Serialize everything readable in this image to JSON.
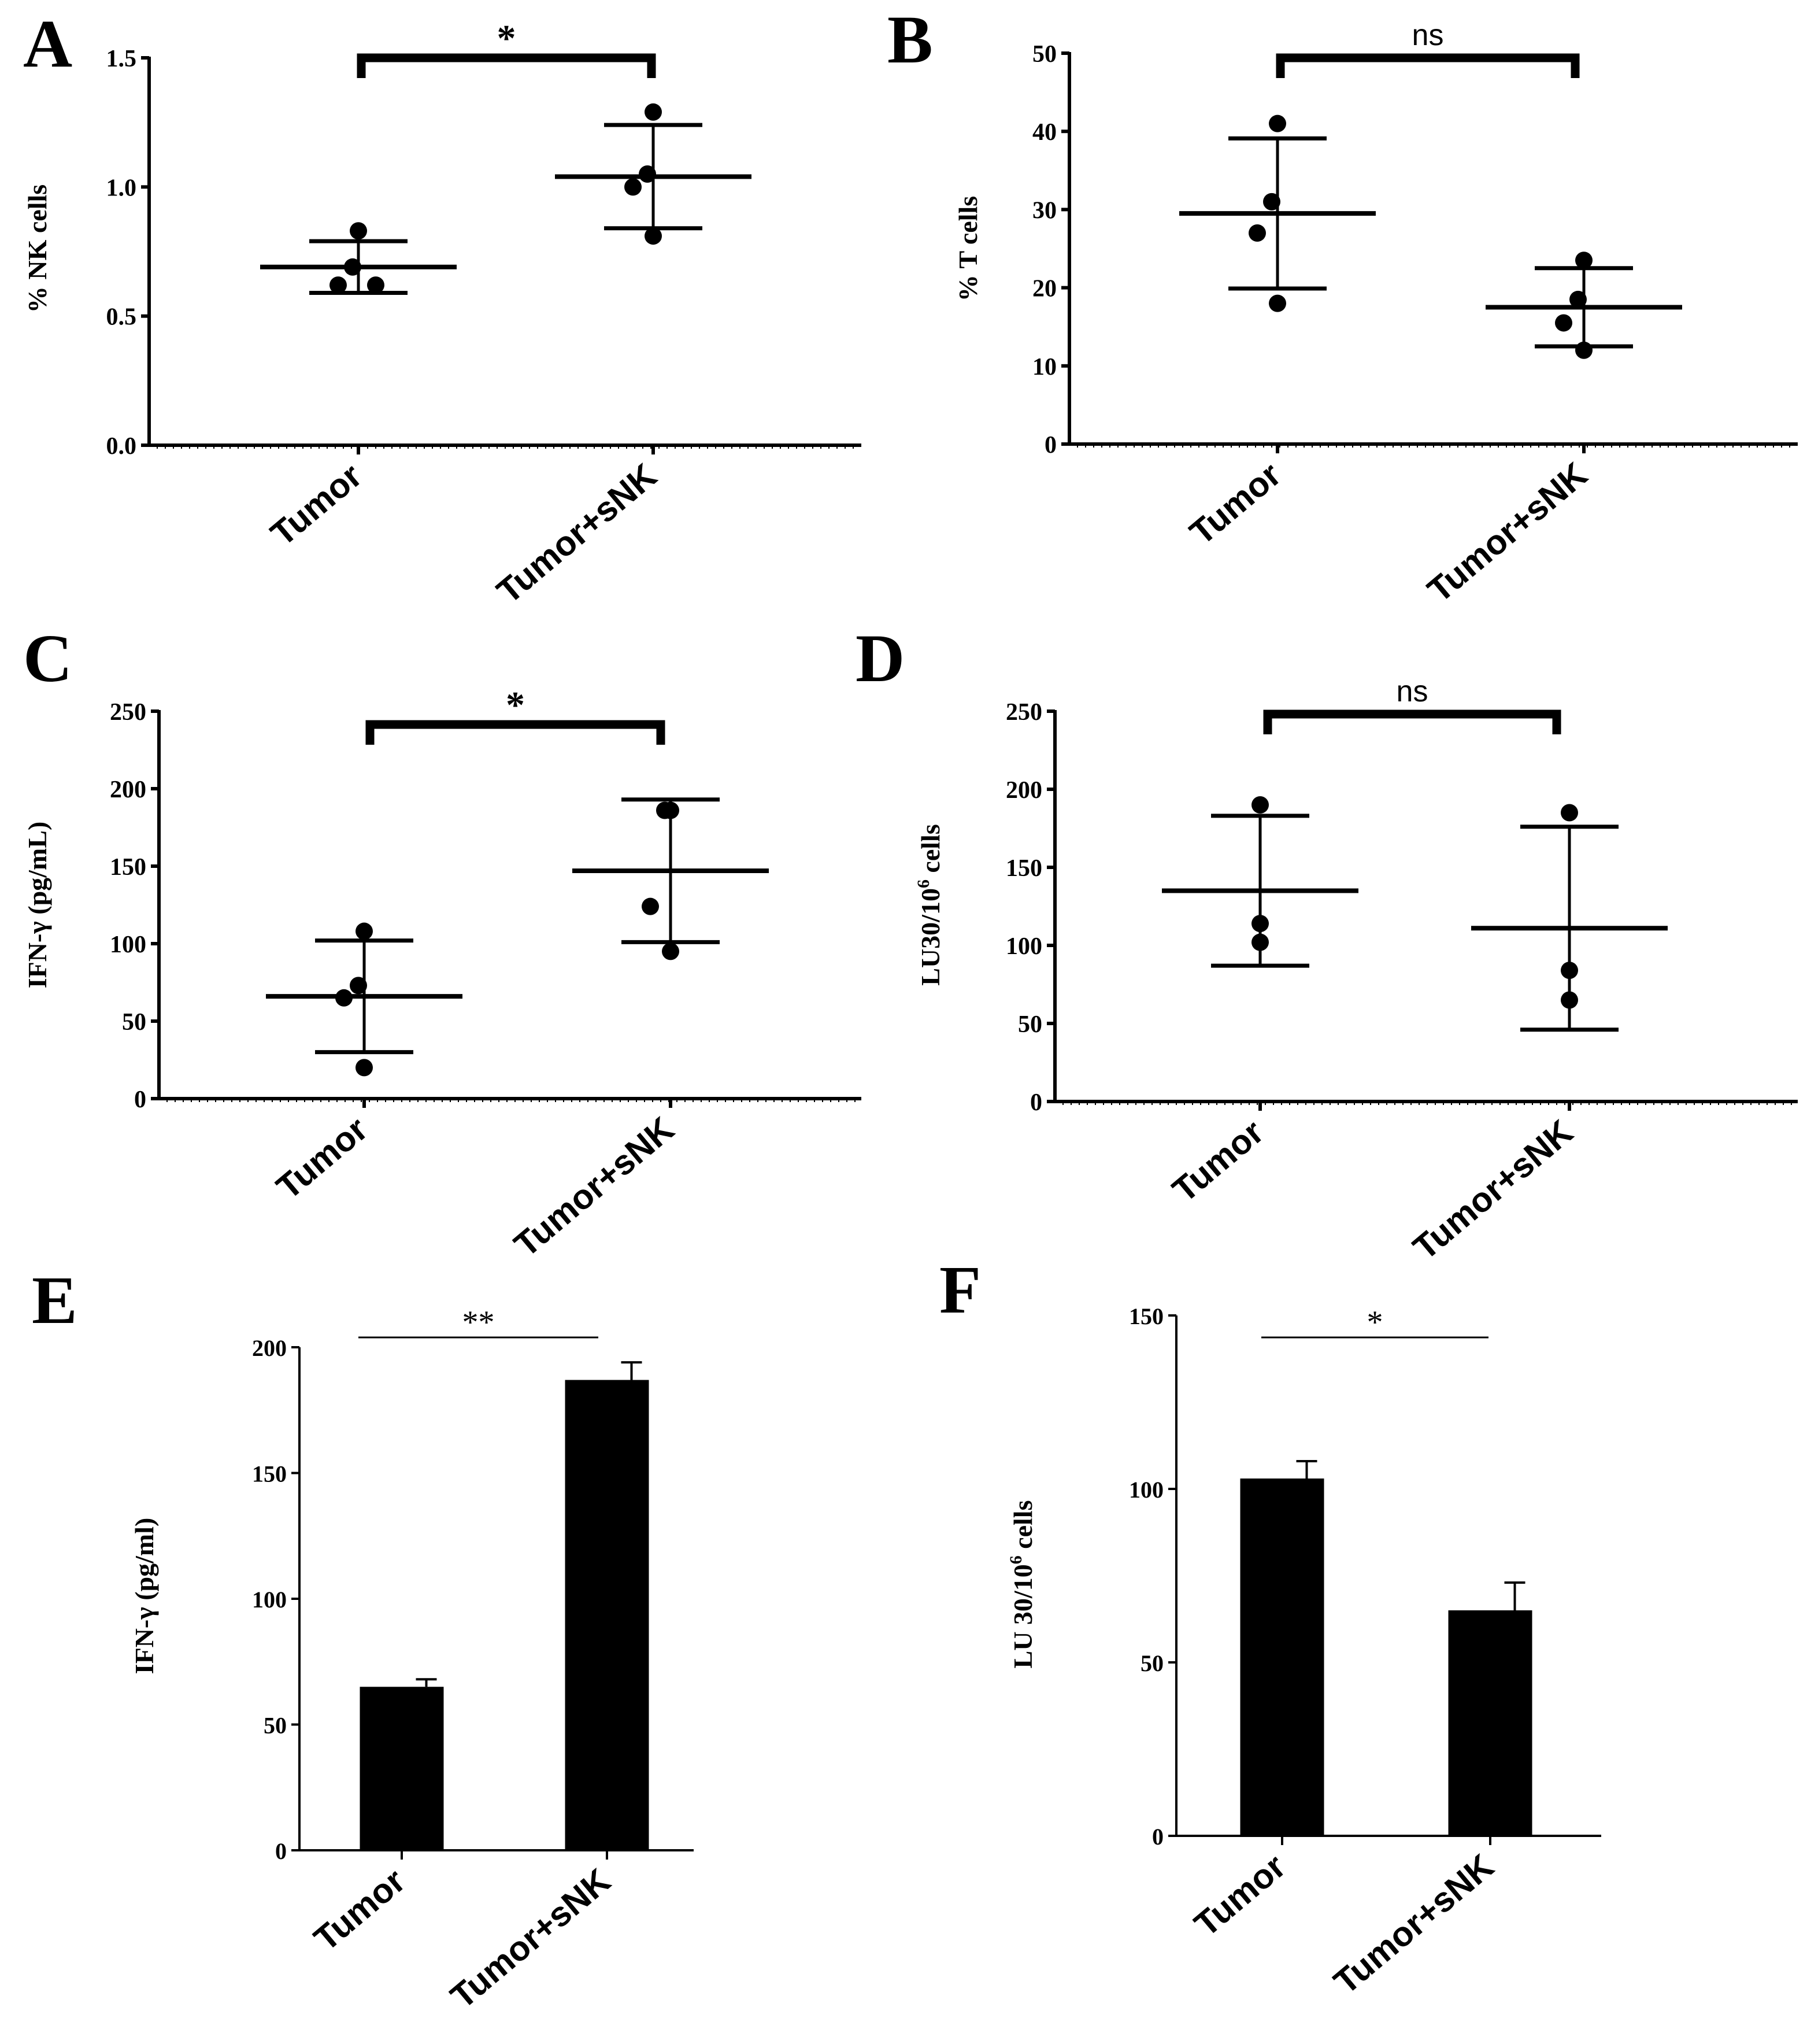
{
  "figure": {
    "background": "#ffffff",
    "ink": "#000000"
  },
  "chart_data": [
    {
      "panel": "A",
      "type": "scatter",
      "ylabel": "% NK cells",
      "ylim": [
        0,
        1.5
      ],
      "yticks": [
        0.0,
        0.5,
        1.0,
        1.5
      ],
      "ytick_labels": [
        "0.0",
        "0.5",
        "1.0",
        "1.5"
      ],
      "categories": [
        "Tumor",
        "Tumor+sNK"
      ],
      "points": [
        [
          0.83,
          0.69,
          0.62,
          0.62
        ],
        [
          1.29,
          1.05,
          1.0,
          0.81
        ]
      ],
      "means": [
        0.69,
        1.04
      ],
      "sd": [
        0.1,
        0.2
      ],
      "significance": "*"
    },
    {
      "panel": "B",
      "type": "scatter",
      "ylabel": "% T cells",
      "ylim": [
        0,
        50
      ],
      "yticks": [
        0,
        10,
        20,
        30,
        40,
        50
      ],
      "ytick_labels": [
        "0",
        "10",
        "20",
        "30",
        "40",
        "50"
      ],
      "categories": [
        "Tumor",
        "Tumor+sNK"
      ],
      "points": [
        [
          41,
          31,
          27,
          18
        ],
        [
          23.5,
          18.5,
          15.5,
          12
        ]
      ],
      "means": [
        29.5,
        17.5
      ],
      "sd": [
        9.6,
        5.0
      ],
      "significance": "ns"
    },
    {
      "panel": "C",
      "type": "scatter",
      "ylabel": "IFN-γ (pg/mL)",
      "ylim": [
        0,
        250
      ],
      "yticks": [
        0,
        50,
        100,
        150,
        200,
        250
      ],
      "ytick_labels": [
        "0",
        "50",
        "100",
        "150",
        "200",
        "250"
      ],
      "categories": [
        "Tumor",
        "Tumor+sNK"
      ],
      "points": [
        [
          108,
          73,
          65,
          20
        ],
        [
          186,
          186,
          124,
          95
        ]
      ],
      "means": [
        66,
        147
      ],
      "sd": [
        36,
        46
      ],
      "significance": "*"
    },
    {
      "panel": "D",
      "type": "scatter",
      "ylabel_main": "LU30/10",
      "ylabel_sup": "6",
      "ylabel_tail": " cells",
      "ylim": [
        0,
        250
      ],
      "yticks": [
        0,
        50,
        100,
        150,
        200,
        250
      ],
      "ytick_labels": [
        "0",
        "50",
        "100",
        "150",
        "200",
        "250"
      ],
      "categories": [
        "Tumor",
        "Tumor+sNK"
      ],
      "points": [
        [
          190,
          114,
          102
        ],
        [
          185,
          84,
          65
        ]
      ],
      "means": [
        135,
        111
      ],
      "sd": [
        48,
        65
      ],
      "significance": "ns"
    },
    {
      "panel": "E",
      "type": "bar",
      "ylabel": "IFN-γ (pg/ml)",
      "ylim": [
        0,
        200
      ],
      "yticks": [
        0,
        50,
        100,
        150,
        200
      ],
      "ytick_labels": [
        "0",
        "50",
        "100",
        "150",
        "200"
      ],
      "categories": [
        "Tumor",
        "Tumor+sNK"
      ],
      "values": [
        65,
        187
      ],
      "errors": [
        3,
        7
      ],
      "significance": "**"
    },
    {
      "panel": "F",
      "type": "bar",
      "ylabel_main": "LU 30/10",
      "ylabel_sup": "6",
      "ylabel_tail": " cells",
      "ylim": [
        0,
        150
      ],
      "yticks": [
        0,
        50,
        100,
        150
      ],
      "ytick_labels": [
        "0",
        "50",
        "100",
        "150"
      ],
      "categories": [
        "Tumor",
        "Tumor+sNK"
      ],
      "values": [
        103,
        65
      ],
      "errors": [
        5,
        8
      ],
      "significance": "*"
    }
  ]
}
